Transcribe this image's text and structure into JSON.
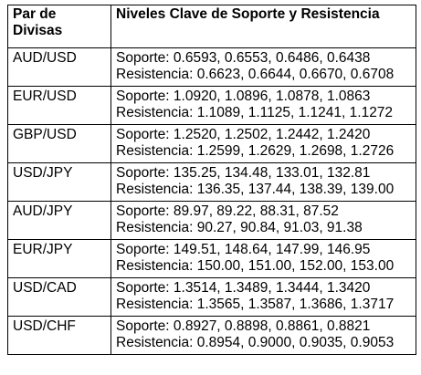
{
  "table": {
    "headers": [
      "Par de Divisas",
      "Niveles Clave de Soporte y Resistencia"
    ],
    "rows": [
      {
        "pair": "AUD/USD",
        "support": "Soporte: 0.6593, 0.6553, 0.6486, 0.6438",
        "resistance": "Resistencia: 0.6623, 0.6644, 0.6670, 0.6708"
      },
      {
        "pair": "EUR/USD",
        "support": "Soporte: 1.0920, 1.0896, 1.0878, 1.0863",
        "resistance": "Resistencia: 1.1089, 1.1125, 1.1241, 1.1272"
      },
      {
        "pair": "GBP/USD",
        "support": "Soporte: 1.2520, 1.2502, 1.2442, 1.2420",
        "resistance": "Resistencia: 1.2599, 1.2629, 1.2698, 1.2726"
      },
      {
        "pair": "USD/JPY",
        "support": "Soporte: 135.25, 134.48, 133.01, 132.81",
        "resistance": "Resistencia: 136.35, 137.44, 138.39, 139.00"
      },
      {
        "pair": "AUD/JPY",
        "support": "Soporte: 89.97, 89.22, 88.31, 87.52",
        "resistance": "Resistencia: 90.27, 90.84, 91.03, 91.38"
      },
      {
        "pair": "EUR/JPY",
        "support": "Soporte: 149.51, 148.64, 147.99, 146.95",
        "resistance": "Resistencia: 150.00, 151.00, 152.00, 153.00"
      },
      {
        "pair": "USD/CAD",
        "support": "Soporte: 1.3514, 1.3489, 1.3444, 1.3420",
        "resistance": "Resistencia: 1.3565, 1.3587, 1.3686, 1.3717"
      },
      {
        "pair": "USD/CHF",
        "support": "Soporte: 0.8927, 0.8898, 0.8861, 0.8821",
        "resistance": "Resistencia: 0.8954, 0.9000, 0.9035, 0.9053"
      }
    ]
  }
}
